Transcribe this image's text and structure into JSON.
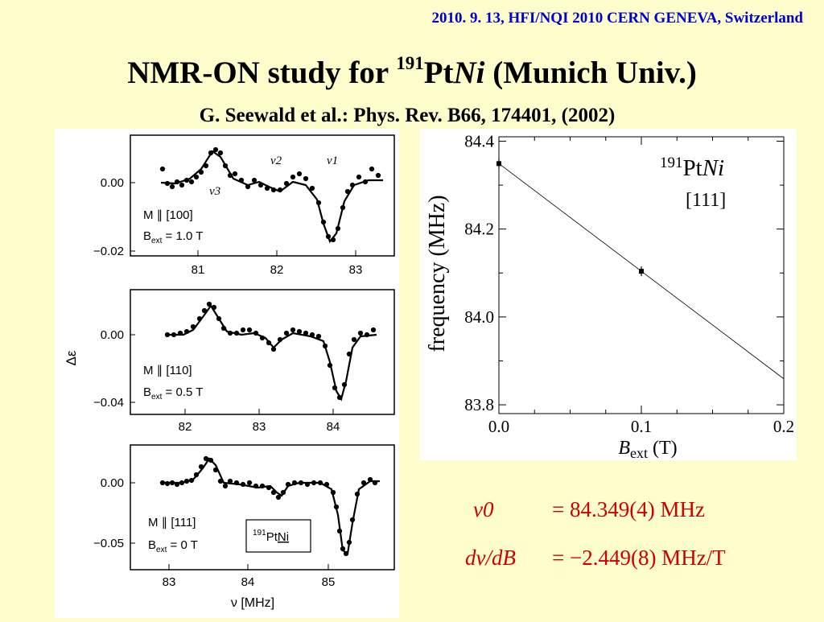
{
  "header": {
    "conference": "2010. 9. 13, HFI/NQI 2010 CERN GENEVA, Switzerland"
  },
  "title": {
    "prefix": "NMR-ON study for ",
    "mass": "191",
    "element": "Pt",
    "host": "Ni",
    "suffix": " (Munich Univ.)"
  },
  "reference": "G. Seewald et al.: Phys. Rev. B66, 174401, (2002)",
  "left_figure": {
    "y_axis_label": "Δε",
    "x_axis_label": "ν [MHz]",
    "panels": [
      {
        "orientation": "M ∥ [100]",
        "bext": "B",
        "bext_sub": "ext",
        "bext_val": " = 1.0 T",
        "yticks": [
          "0.00",
          "−0.02"
        ],
        "xticks": [
          "81",
          "82",
          "83"
        ],
        "peak_labels": [
          "ν2",
          "ν1",
          "ν3"
        ]
      },
      {
        "orientation": "M ∥ [110]",
        "bext": "B",
        "bext_sub": "ext",
        "bext_val": " = 0.5 T",
        "yticks": [
          "0.00",
          "−0.04"
        ],
        "xticks": [
          "82",
          "83",
          "84"
        ]
      },
      {
        "orientation": "M ∥ [111]",
        "bext": "B",
        "bext_sub": "ext",
        "bext_val": " = 0 T",
        "yticks": [
          "0.00",
          "−0.05"
        ],
        "xticks": [
          "83",
          "84",
          "85"
        ],
        "inset": {
          "mass": "191",
          "element": "Pt",
          "host": "Ni"
        }
      }
    ]
  },
  "chart_data": {
    "type": "scatter",
    "title": "",
    "xlabel": "Bext (T)",
    "ylabel": "frequency (MHz)",
    "xlim": [
      0.0,
      0.2
    ],
    "ylim": [
      83.78,
      84.41
    ],
    "x_ticks": [
      "0.0",
      "0.1",
      "0.2"
    ],
    "y_ticks": [
      "83.8",
      "84.0",
      "84.2",
      "84.4"
    ],
    "points": [
      {
        "x": 0.0,
        "y": 84.349
      },
      {
        "x": 0.1,
        "y": 84.104
      }
    ],
    "fit_line": {
      "intercept": 84.349,
      "slope": -2.449
    },
    "annotation": {
      "mass": "191",
      "element": "Pt",
      "host": "Ni",
      "direction": "[111]"
    },
    "grid": false
  },
  "results": [
    {
      "label": "ν0",
      "value": "= 84.349(4) MHz"
    },
    {
      "label": "dν/dB",
      "value": "= −2.449(8) MHz/T"
    }
  ]
}
